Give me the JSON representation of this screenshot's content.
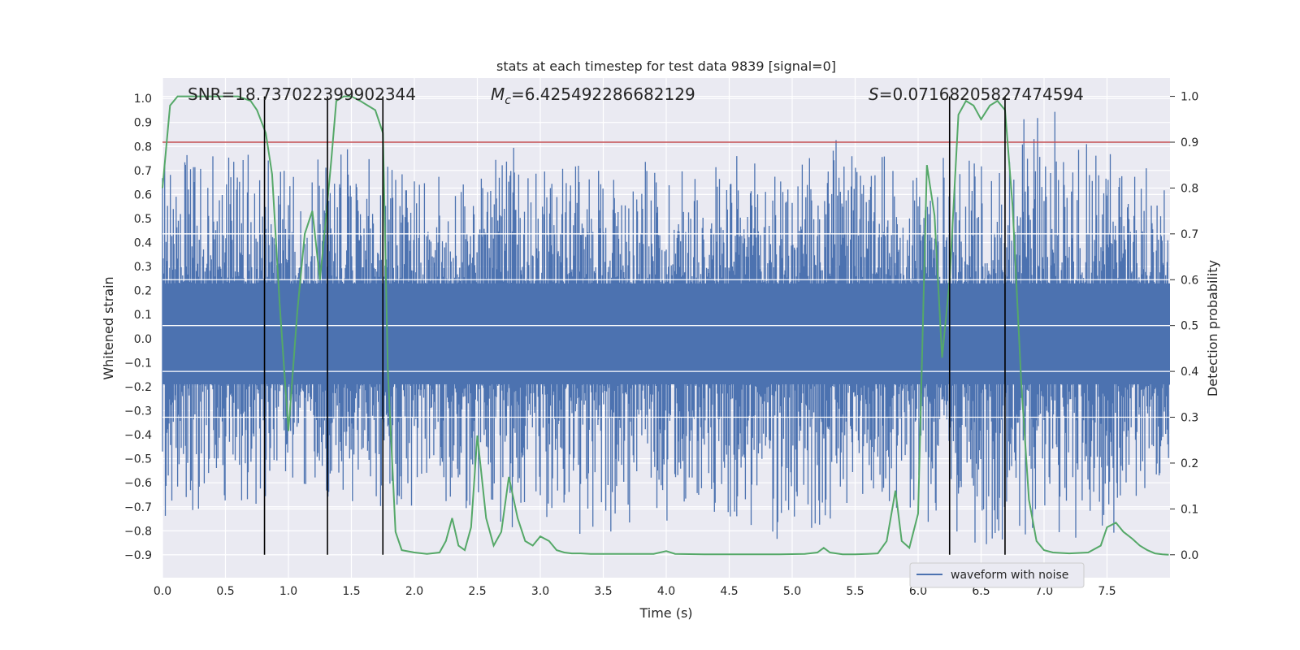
{
  "chart_data": {
    "type": "line",
    "title": "stats at each timestep for test data 9839 [signal=0]",
    "xlabel": "Time (s)",
    "ylabel_left": "Whitened strain",
    "ylabel_right": "Detection probability",
    "xlim": [
      0.0,
      8.0
    ],
    "ylim_left": [
      -0.995,
      1.085
    ],
    "ylim_right": [
      -0.05,
      1.04
    ],
    "x_ticks": [
      "0.0",
      "0.5",
      "1.0",
      "1.5",
      "2.0",
      "2.5",
      "3.0",
      "3.5",
      "4.0",
      "4.5",
      "5.0",
      "5.5",
      "6.0",
      "6.5",
      "7.0",
      "7.5"
    ],
    "y_ticks_left": [
      "−0.9",
      "−0.8",
      "−0.7",
      "−0.6",
      "−0.5",
      "−0.4",
      "−0.3",
      "−0.2",
      "−0.1",
      "0.0",
      "0.1",
      "0.2",
      "0.3",
      "0.4",
      "0.5",
      "0.6",
      "0.7",
      "0.8",
      "0.9",
      "1.0"
    ],
    "y_ticks_right": [
      "0.0",
      "0.1",
      "0.2",
      "0.3",
      "0.4",
      "0.5",
      "0.6",
      "0.7",
      "0.8",
      "0.9",
      "1.0"
    ],
    "grid": true,
    "legend_position": "lower-right",
    "annotations": {
      "snr": "SNR=18.737022399902344",
      "mc_symbol": "M",
      "mc_sub": "c",
      "mc_value": "=6.425492286682129",
      "s_symbol": "S",
      "s_value": "=0.07168205827474594"
    },
    "threshold_right": 0.9,
    "vertical_lines_x": [
      0.81,
      1.31,
      1.75,
      6.25,
      6.69
    ],
    "series": [
      {
        "name": "waveform with noise",
        "axis": "left",
        "color": "#4c72b0",
        "envelope_x": [
          0.0,
          0.5,
          0.8,
          1.0,
          1.5,
          2.0,
          2.5,
          2.8,
          3.0,
          3.5,
          4.0,
          4.5,
          5.0,
          5.4,
          5.5,
          6.0,
          6.5,
          7.0,
          7.5,
          7.8,
          7.99
        ],
        "envelope_max": [
          0.77,
          0.76,
          0.81,
          0.72,
          0.81,
          0.69,
          0.67,
          0.83,
          0.71,
          0.74,
          0.74,
          0.77,
          0.7,
          0.88,
          0.74,
          0.78,
          0.74,
          1.0,
          0.82,
          0.73,
          0.64
        ],
        "envelope_min": [
          -0.79,
          -0.7,
          -0.69,
          -0.59,
          -0.72,
          -0.7,
          -0.71,
          -0.8,
          -0.83,
          -0.81,
          -0.76,
          -0.76,
          -0.88,
          -0.71,
          -0.64,
          -0.75,
          -0.86,
          -0.83,
          -0.84,
          -0.7,
          -0.52
        ]
      },
      {
        "name": "",
        "axis": "right",
        "color": "#55a868",
        "x": [
          0.0,
          0.06,
          0.12,
          0.25,
          0.45,
          0.6,
          0.7,
          0.75,
          0.82,
          0.87,
          0.93,
          1.0,
          1.07,
          1.13,
          1.19,
          1.25,
          1.3,
          1.34,
          1.38,
          1.44,
          1.5,
          1.57,
          1.63,
          1.69,
          1.75,
          1.79,
          1.85,
          1.9,
          2.0,
          2.1,
          2.2,
          2.25,
          2.3,
          2.35,
          2.4,
          2.45,
          2.5,
          2.57,
          2.63,
          2.69,
          2.75,
          2.82,
          2.88,
          2.94,
          3.0,
          3.07,
          3.13,
          3.19,
          3.25,
          3.32,
          3.4,
          3.5,
          3.6,
          3.7,
          3.8,
          3.9,
          4.0,
          4.07,
          4.3,
          4.6,
          4.9,
          5.1,
          5.2,
          5.25,
          5.3,
          5.4,
          5.5,
          5.6,
          5.68,
          5.75,
          5.82,
          5.87,
          5.93,
          6.0,
          6.07,
          6.13,
          6.19,
          6.25,
          6.32,
          6.38,
          6.44,
          6.5,
          6.57,
          6.63,
          6.69,
          6.75,
          6.82,
          6.88,
          6.94,
          7.0,
          7.07,
          7.2,
          7.35,
          7.45,
          7.5,
          7.57,
          7.63,
          7.7,
          7.76,
          7.82,
          7.88,
          7.94,
          7.99
        ],
        "y": [
          0.8,
          0.98,
          1.0,
          1.0,
          1.0,
          1.0,
          0.99,
          0.97,
          0.92,
          0.83,
          0.55,
          0.27,
          0.53,
          0.7,
          0.75,
          0.6,
          0.74,
          0.86,
          0.99,
          1.0,
          1.0,
          0.99,
          0.98,
          0.97,
          0.92,
          0.4,
          0.05,
          0.01,
          0.005,
          0.002,
          0.005,
          0.03,
          0.08,
          0.02,
          0.01,
          0.06,
          0.26,
          0.08,
          0.02,
          0.05,
          0.17,
          0.08,
          0.03,
          0.02,
          0.04,
          0.03,
          0.01,
          0.005,
          0.003,
          0.003,
          0.002,
          0.002,
          0.002,
          0.002,
          0.002,
          0.002,
          0.008,
          0.002,
          0.001,
          0.001,
          0.001,
          0.002,
          0.005,
          0.015,
          0.005,
          0.001,
          0.001,
          0.002,
          0.003,
          0.03,
          0.14,
          0.03,
          0.015,
          0.09,
          0.85,
          0.74,
          0.43,
          0.6,
          0.96,
          0.99,
          0.98,
          0.95,
          0.98,
          0.99,
          0.97,
          0.76,
          0.37,
          0.12,
          0.03,
          0.01,
          0.005,
          0.003,
          0.005,
          0.02,
          0.06,
          0.07,
          0.05,
          0.035,
          0.02,
          0.01,
          0.003,
          0.001,
          0.0
        ]
      }
    ]
  }
}
